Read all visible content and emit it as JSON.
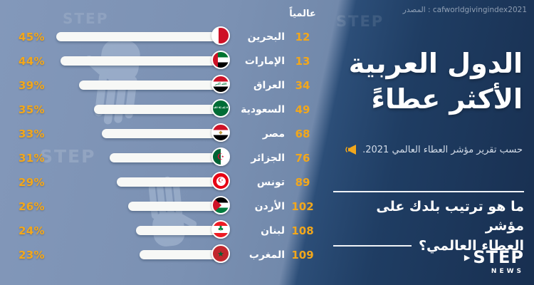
{
  "watermark": {
    "source": "المصدر : cafworldgivingindex2021",
    "ghost": "STEP"
  },
  "panel": {
    "title_line1": "الدول العربية",
    "title_line2": "الأكثر عطاءً",
    "subtitle": "حسب تقرير مؤشر العطاء العالمي 2021.",
    "question_line1": "ما هو ترتيب بلدك على مؤشر",
    "question_line2": "العطاء العالمي؟",
    "logo_main": "STEP",
    "logo_sub": "NEWS"
  },
  "chart_data": {
    "type": "bar",
    "orientation": "horizontal",
    "title": "الدول العربية الأكثر عطاءً",
    "subtitle": "حسب تقرير مؤشر العطاء العالمي 2021",
    "rank_column_label": "عالمياً",
    "value_unit": "%",
    "xlim": [
      0,
      50
    ],
    "countries": [
      {
        "id": "bahrain",
        "name": "البحرين",
        "percent": 45,
        "rank": 12,
        "flag": {
          "dir": "v",
          "stripes": [
            {
              "c": "#ffffff",
              "f": 0,
              "t": 36
            },
            {
              "c": "#ce1126",
              "f": 36,
              "t": 100
            }
          ]
        }
      },
      {
        "id": "uae",
        "name": "الإمارات",
        "percent": 44,
        "rank": 13,
        "flag": {
          "dir": "h",
          "stripes": [
            {
              "c": "#00732f",
              "f": 0,
              "t": 34
            },
            {
              "c": "#ffffff",
              "f": 34,
              "t": 67
            },
            {
              "c": "#000000",
              "f": 67,
              "t": 100
            }
          ],
          "hoist": {
            "c": "#ce1126",
            "w": 32
          }
        }
      },
      {
        "id": "iraq",
        "name": "العراق",
        "percent": 39,
        "rank": 34,
        "flag": {
          "dir": "h",
          "stripes": [
            {
              "c": "#ce1126",
              "f": 0,
              "t": 34
            },
            {
              "c": "#ffffff",
              "f": 34,
              "t": 67
            },
            {
              "c": "#000000",
              "f": 67,
              "t": 100
            }
          ],
          "emblem": {
            "char": "الله أكبر",
            "color": "#007a3d",
            "size": 4
          }
        }
      },
      {
        "id": "saudi-arabia",
        "name": "السعودية",
        "percent": 35,
        "rank": 49,
        "flag": {
          "dir": "h",
          "stripes": [
            {
              "c": "#006c35",
              "f": 0,
              "t": 100
            }
          ],
          "emblem": {
            "char": "لا إله إلا الله",
            "color": "#ffffff",
            "size": 3.5
          }
        }
      },
      {
        "id": "egypt",
        "name": "مصر",
        "percent": 33,
        "rank": 68,
        "flag": {
          "dir": "h",
          "stripes": [
            {
              "c": "#ce1126",
              "f": 0,
              "t": 34
            },
            {
              "c": "#ffffff",
              "f": 34,
              "t": 67
            },
            {
              "c": "#000000",
              "f": 67,
              "t": 100
            }
          ],
          "emblem": {
            "char": "◆",
            "color": "#c09a3e",
            "size": 7
          }
        }
      },
      {
        "id": "algeria",
        "name": "الجزائر",
        "percent": 31,
        "rank": 76,
        "flag": {
          "dir": "v",
          "stripes": [
            {
              "c": "#006233",
              "f": 0,
              "t": 50
            },
            {
              "c": "#ffffff",
              "f": 50,
              "t": 100
            }
          ],
          "emblem": {
            "char": "☪",
            "color": "#d21034",
            "size": 12
          }
        }
      },
      {
        "id": "tunisia",
        "name": "تونس",
        "percent": 29,
        "rank": 89,
        "flag": {
          "dir": "h",
          "stripes": [
            {
              "c": "#e70013",
              "f": 0,
              "t": 100
            }
          ],
          "emblem": {
            "char": "☪",
            "color": "#e70013",
            "size": 9,
            "disc": "#ffffff"
          }
        }
      },
      {
        "id": "jordan",
        "name": "الأردن",
        "percent": 26,
        "rank": 102,
        "flag": {
          "dir": "h",
          "stripes": [
            {
              "c": "#000000",
              "f": 0,
              "t": 34
            },
            {
              "c": "#ffffff",
              "f": 34,
              "t": 67
            },
            {
              "c": "#007a3d",
              "f": 67,
              "t": 100
            }
          ],
          "triangle": "#ce1126"
        }
      },
      {
        "id": "lebanon",
        "name": "لبنان",
        "percent": 24,
        "rank": 108,
        "flag": {
          "dir": "h",
          "stripes": [
            {
              "c": "#ed1c24",
              "f": 0,
              "t": 27
            },
            {
              "c": "#ffffff",
              "f": 27,
              "t": 73
            },
            {
              "c": "#ed1c24",
              "f": 73,
              "t": 100
            }
          ],
          "emblem": {
            "char": "♣",
            "color": "#00843d",
            "size": 10
          }
        }
      },
      {
        "id": "morocco",
        "name": "المغرب",
        "percent": 23,
        "rank": 109,
        "flag": {
          "dir": "h",
          "stripes": [
            {
              "c": "#c1272d",
              "f": 0,
              "t": 100
            }
          ],
          "emblem": {
            "char": "★",
            "color": "#006233",
            "size": 11
          }
        }
      }
    ]
  },
  "colors": {
    "accent_yellow": "#f2a71b",
    "bar_fill": "#f7f8f6",
    "bg_left": "#7d95b8",
    "bg_right": "#1d3a5f",
    "text_white": "#ffffff"
  }
}
